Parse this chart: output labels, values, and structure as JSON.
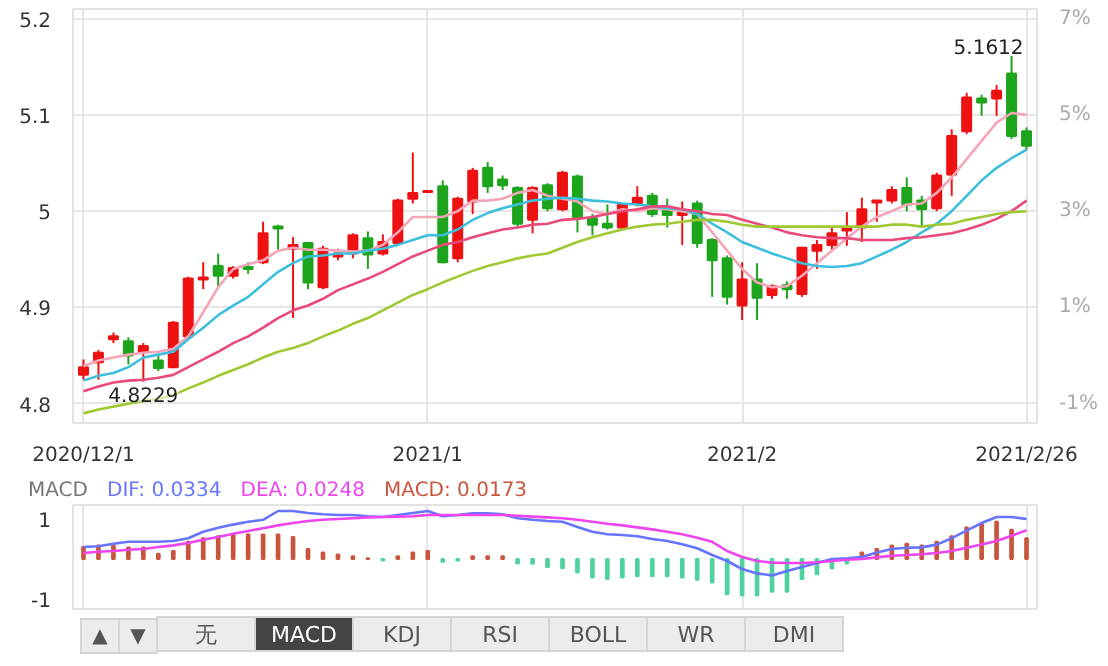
{
  "chart_data": [
    {
      "type": "candlestick",
      "categories": [
        "2020/12/1",
        null,
        null,
        null,
        null,
        null,
        null,
        null,
        null,
        null,
        null,
        null,
        null,
        null,
        null,
        null,
        null,
        null,
        null,
        null,
        null,
        null,
        null,
        "2021/1",
        null,
        null,
        null,
        null,
        null,
        null,
        null,
        null,
        null,
        null,
        null,
        null,
        null,
        null,
        null,
        null,
        null,
        null,
        null,
        null,
        "2021/2",
        null,
        null,
        null,
        null,
        null,
        null,
        null,
        null,
        null,
        null,
        null,
        null,
        null,
        null,
        null,
        null,
        null,
        null,
        "2021/2/26"
      ],
      "ohlc": [
        [
          4.83,
          4.846,
          4.825,
          4.838
        ],
        [
          4.843,
          4.856,
          4.825,
          4.853
        ],
        [
          4.867,
          4.874,
          4.863,
          4.87
        ],
        [
          4.865,
          4.869,
          4.841,
          4.85
        ],
        [
          4.854,
          4.863,
          4.8229,
          4.86
        ],
        [
          4.845,
          4.852,
          4.834,
          4.837
        ],
        [
          4.838,
          4.886,
          4.837,
          4.884
        ],
        [
          4.87,
          4.932,
          4.867,
          4.93
        ],
        [
          4.929,
          4.947,
          4.919,
          4.931
        ],
        [
          4.943,
          4.956,
          4.922,
          4.933
        ],
        [
          4.933,
          4.943,
          4.93,
          4.941
        ],
        [
          4.942,
          4.947,
          4.935,
          4.94
        ],
        [
          4.947,
          4.989,
          4.945,
          4.977
        ],
        [
          4.984,
          4.986,
          4.96,
          4.982
        ],
        [
          4.961,
          4.973,
          4.889,
          4.965
        ],
        [
          4.967,
          4.968,
          4.919,
          4.926
        ],
        [
          4.921,
          4.964,
          4.919,
          4.961
        ],
        [
          4.953,
          4.961,
          4.949,
          4.956
        ],
        [
          4.956,
          4.977,
          4.951,
          4.975
        ],
        [
          4.972,
          4.979,
          4.94,
          4.955
        ],
        [
          4.956,
          4.976,
          4.954,
          4.968
        ],
        [
          4.967,
          5.013,
          4.965,
          5.011
        ],
        [
          5.013,
          5.061,
          5.008,
          5.019
        ],
        [
          5.02,
          5.022,
          5.019,
          5.021
        ],
        [
          5.026,
          5.032,
          4.946,
          4.947
        ],
        [
          4.951,
          5.015,
          4.947,
          5.013
        ],
        [
          5.01,
          5.045,
          4.997,
          5.042
        ],
        [
          5.045,
          5.051,
          5.019,
          5.026
        ],
        [
          5.033,
          5.037,
          5.022,
          5.027
        ],
        [
          5.024,
          5.026,
          4.983,
          4.987
        ],
        [
          4.991,
          5.026,
          4.977,
          5.024
        ],
        [
          5.027,
          5.029,
          5.0,
          5.003
        ],
        [
          5.002,
          5.042,
          5.0,
          5.04
        ],
        [
          5.036,
          5.038,
          4.978,
          4.994
        ],
        [
          4.993,
          4.997,
          4.975,
          4.986
        ],
        [
          4.987,
          5.007,
          4.981,
          4.983
        ],
        [
          4.983,
          5.008,
          4.981,
          5.007
        ],
        [
          5.008,
          5.026,
          5.005,
          5.014
        ],
        [
          5.016,
          5.019,
          4.994,
          4.997
        ],
        [
          5.003,
          5.013,
          4.983,
          4.996
        ],
        [
          4.996,
          5.01,
          4.965,
          4.999
        ],
        [
          5.008,
          5.011,
          4.962,
          4.967
        ],
        [
          4.97,
          4.972,
          4.911,
          4.949
        ],
        [
          4.951,
          4.954,
          4.903,
          4.911
        ],
        [
          4.902,
          4.947,
          4.887,
          4.929
        ],
        [
          4.929,
          4.946,
          4.887,
          4.91
        ],
        [
          4.913,
          4.924,
          4.909,
          4.922
        ],
        [
          4.923,
          4.927,
          4.909,
          4.919
        ],
        [
          4.914,
          4.963,
          4.911,
          4.962
        ],
        [
          4.959,
          4.97,
          4.94,
          4.965
        ],
        [
          4.965,
          4.983,
          4.96,
          4.977
        ],
        [
          4.98,
          4.999,
          4.964,
          4.983
        ],
        [
          4.983,
          5.014,
          4.968,
          5.002
        ],
        [
          5.009,
          5.011,
          4.989,
          5.011
        ],
        [
          5.011,
          5.026,
          5.008,
          5.022
        ],
        [
          5.024,
          5.035,
          5.0,
          5.007
        ],
        [
          5.011,
          5.016,
          4.983,
          5.002
        ],
        [
          5.003,
          5.04,
          5.0,
          5.037
        ],
        [
          5.038,
          5.085,
          5.016,
          5.078
        ],
        [
          5.083,
          5.123,
          5.08,
          5.118
        ],
        [
          5.117,
          5.121,
          5.099,
          5.113
        ],
        [
          5.117,
          5.131,
          5.099,
          5.125
        ],
        [
          5.143,
          5.1612,
          5.075,
          5.078
        ],
        [
          5.083,
          5.087,
          5.064,
          5.068
        ]
      ],
      "colors": [
        "#ee1111",
        "#ee1111",
        "#ee1111",
        "#1ca51c",
        "#ee1111",
        "#1ca51c",
        "#ee1111",
        "#ee1111",
        "#ee1111",
        "#1ca51c",
        "#ee1111",
        "#1ca51c",
        "#ee1111",
        "#1ca51c",
        "#ee1111",
        "#1ca51c",
        "#ee1111",
        "#ee1111",
        "#ee1111",
        "#1ca51c",
        "#ee1111",
        "#ee1111",
        "#ee1111",
        "#ee1111",
        "#1ca51c",
        "#ee1111",
        "#ee1111",
        "#1ca51c",
        "#1ca51c",
        "#1ca51c",
        "#ee1111",
        "#1ca51c",
        "#ee1111",
        "#1ca51c",
        "#1ca51c",
        "#1ca51c",
        "#ee1111",
        "#ee1111",
        "#1ca51c",
        "#1ca51c",
        "#ee1111",
        "#1ca51c",
        "#1ca51c",
        "#1ca51c",
        "#ee1111",
        "#1ca51c",
        "#ee1111",
        "#1ca51c",
        "#ee1111",
        "#ee1111",
        "#ee1111",
        "#ee1111",
        "#ee1111",
        "#ee1111",
        "#ee1111",
        "#1ca51c",
        "#1ca51c",
        "#ee1111",
        "#ee1111",
        "#ee1111",
        "#1ca51c",
        "#ee1111",
        "#1ca51c",
        "#1ca51c"
      ],
      "series": [
        {
          "type": "line",
          "color": "#f4a6b8",
          "values": [
            4.839,
            4.845,
            4.848,
            4.851,
            4.853,
            4.854,
            4.857,
            4.87,
            4.895,
            4.921,
            4.94,
            4.945,
            4.949,
            4.959,
            4.962,
            4.96,
            4.96,
            4.959,
            4.958,
            4.959,
            4.965,
            4.978,
            4.994,
            4.994,
            4.994,
            5.0,
            5.011,
            5.011,
            5.013,
            5.019,
            5.022,
            5.016,
            5.013,
            5.01,
            5.0,
            4.997,
            5.002,
            5.0,
            5.003,
            5.002,
            5.0,
            4.997,
            4.978,
            4.959,
            4.94,
            4.926,
            4.921,
            4.922,
            4.933,
            4.946,
            4.959,
            4.972,
            4.984,
            4.994,
            5.0,
            5.007,
            5.008,
            5.019,
            5.035,
            5.054,
            5.073,
            5.092,
            5.102,
            5.1
          ]
        },
        {
          "type": "line",
          "color": "#3dbfdc",
          "values": [
            4.824,
            4.829,
            4.832,
            4.838,
            4.848,
            4.851,
            4.854,
            4.867,
            4.879,
            4.892,
            4.902,
            4.911,
            4.924,
            4.937,
            4.946,
            4.953,
            4.954,
            4.956,
            4.956,
            4.959,
            4.961,
            4.965,
            4.97,
            4.975,
            4.975,
            4.981,
            4.991,
            4.998,
            5.003,
            5.007,
            5.011,
            5.013,
            5.014,
            5.013,
            5.011,
            5.01,
            5.008,
            5.007,
            5.005,
            5.003,
            5.002,
            4.997,
            4.987,
            4.978,
            4.968,
            4.962,
            4.956,
            4.951,
            4.946,
            4.943,
            4.942,
            4.943,
            4.946,
            4.953,
            4.96,
            4.968,
            4.978,
            4.987,
            5.0,
            5.016,
            5.032,
            5.045,
            5.055,
            5.064
          ]
        },
        {
          "type": "line",
          "color": "#ea4a7a",
          "values": [
            4.813,
            4.818,
            4.822,
            4.824,
            4.825,
            4.827,
            4.83,
            4.838,
            4.846,
            4.854,
            4.863,
            4.87,
            4.879,
            4.889,
            4.897,
            4.902,
            4.909,
            4.918,
            4.924,
            4.93,
            4.937,
            4.945,
            4.953,
            4.959,
            4.965,
            4.968,
            4.973,
            4.977,
            4.981,
            4.983,
            4.986,
            4.987,
            4.991,
            4.992,
            4.994,
            4.997,
            5.0,
            5.002,
            5.005,
            5.005,
            5.002,
            5.0,
            4.997,
            4.996,
            4.991,
            4.987,
            4.983,
            4.978,
            4.975,
            4.973,
            4.972,
            4.972,
            4.97,
            4.97,
            4.97,
            4.972,
            4.973,
            4.975,
            4.977,
            4.981,
            4.986,
            4.992,
            5.0,
            5.011
          ]
        },
        {
          "type": "line",
          "color": "#a0c832",
          "values": [
            4.79,
            4.794,
            4.797,
            4.8,
            4.803,
            4.805,
            4.809,
            4.816,
            4.822,
            4.829,
            4.835,
            4.841,
            4.848,
            4.854,
            4.858,
            4.863,
            4.87,
            4.876,
            4.883,
            4.889,
            4.897,
            4.905,
            4.913,
            4.919,
            4.926,
            4.932,
            4.938,
            4.943,
            4.947,
            4.951,
            4.954,
            4.956,
            4.962,
            4.968,
            4.973,
            4.977,
            4.981,
            4.984,
            4.986,
            4.987,
            4.989,
            4.991,
            4.991,
            4.989,
            4.986,
            4.984,
            4.984,
            4.984,
            4.984,
            4.984,
            4.984,
            4.984,
            4.984,
            4.984,
            4.986,
            4.986,
            4.984,
            4.986,
            4.987,
            4.991,
            4.994,
            4.997,
            4.999,
            5.0
          ]
        }
      ],
      "annotations": [
        "4.8229",
        "5.1612"
      ],
      "ylim": [
        4.78,
        5.21
      ],
      "yticks": [
        4.8,
        4.9,
        5,
        5.1,
        5.2
      ],
      "y2lim": [
        -1.4,
        7.2
      ],
      "y2ticks": [
        {
          "value": -1,
          "label": "-1%"
        },
        {
          "value": 1,
          "label": "1%"
        },
        {
          "value": 3,
          "label": "3%"
        },
        {
          "value": 5,
          "label": "5%"
        },
        {
          "value": 7,
          "label": "7%"
        }
      ],
      "grid": true
    },
    {
      "type": "bar",
      "title": "MACD",
      "categories": [
        "2020/12/1",
        null,
        null,
        null,
        null,
        null,
        null,
        null,
        null,
        null,
        null,
        null,
        null,
        null,
        null,
        null,
        null,
        null,
        null,
        null,
        null,
        null,
        null,
        "2021/1",
        null,
        null,
        null,
        null,
        null,
        null,
        null,
        null,
        null,
        null,
        null,
        null,
        null,
        null,
        null,
        null,
        null,
        null,
        null,
        null,
        "2021/2",
        null,
        null,
        null,
        null,
        null,
        null,
        null,
        null,
        null,
        null,
        null,
        null,
        null,
        null,
        null,
        null,
        null,
        null,
        "2021/2/26"
      ],
      "series": [
        {
          "type": "line",
          "name": "DIF: 0.0334",
          "color": "#6674ff",
          "values": [
            0.3,
            0.32,
            0.38,
            0.43,
            0.43,
            0.43,
            0.45,
            0.52,
            0.68,
            0.78,
            0.86,
            0.93,
            0.98,
            1.2,
            1.2,
            1.15,
            1.12,
            1.1,
            1.1,
            1.07,
            1.05,
            1.1,
            1.15,
            1.2,
            1.07,
            1.1,
            1.14,
            1.14,
            1.12,
            1.02,
            0.98,
            0.95,
            0.93,
            0.8,
            0.68,
            0.62,
            0.6,
            0.57,
            0.5,
            0.45,
            0.37,
            0.27,
            0.1,
            -0.05,
            -0.25,
            -0.36,
            -0.41,
            -0.3,
            -0.2,
            -0.1,
            0.0,
            0.02,
            0.05,
            0.16,
            0.25,
            0.28,
            0.29,
            0.36,
            0.52,
            0.71,
            0.9,
            1.05,
            1.05,
            1.0
          ]
        },
        {
          "type": "line",
          "name": "DEA: 0.0248",
          "color": "#ee44ee",
          "values": [
            0.15,
            0.18,
            0.2,
            0.23,
            0.25,
            0.3,
            0.34,
            0.4,
            0.48,
            0.55,
            0.63,
            0.7,
            0.77,
            0.84,
            0.9,
            0.95,
            0.98,
            1.0,
            1.02,
            1.04,
            1.05,
            1.06,
            1.07,
            1.1,
            1.1,
            1.1,
            1.1,
            1.1,
            1.1,
            1.08,
            1.06,
            1.04,
            1.02,
            0.98,
            0.93,
            0.88,
            0.84,
            0.79,
            0.74,
            0.68,
            0.62,
            0.53,
            0.43,
            0.2,
            0.05,
            -0.05,
            -0.09,
            -0.1,
            -0.1,
            -0.08,
            -0.05,
            -0.02,
            0.0,
            0.04,
            0.08,
            0.1,
            0.12,
            0.15,
            0.2,
            0.28,
            0.36,
            0.45,
            0.58,
            0.72
          ]
        },
        {
          "type": "bar",
          "name": "MACD: 0.0173",
          "color": "#c8553d",
          "values": [
            0.3,
            0.34,
            0.34,
            0.29,
            0.29,
            0.13,
            0.2,
            0.43,
            0.52,
            0.57,
            0.61,
            0.61,
            0.61,
            0.61,
            0.55,
            0.25,
            0.16,
            0.11,
            0.07,
            0.02,
            -0.04,
            0.07,
            0.16,
            0.2,
            -0.07,
            -0.04,
            0.07,
            0.07,
            0.07,
            -0.11,
            -0.12,
            -0.2,
            -0.23,
            -0.34,
            -0.46,
            -0.5,
            -0.46,
            -0.43,
            -0.43,
            -0.43,
            -0.46,
            -0.52,
            -0.59,
            -0.88,
            -0.91,
            -0.91,
            -0.82,
            -0.82,
            -0.5,
            -0.38,
            -0.23,
            -0.11,
            0.16,
            0.25,
            0.34,
            0.38,
            0.34,
            0.43,
            0.57,
            0.79,
            0.88,
            0.93,
            0.73,
            0.52
          ],
          "colors": [
            "#c8553d",
            "#c8553d",
            "#c8553d",
            "#c8553d",
            "#c8553d",
            "#c8553d",
            "#c8553d",
            "#c8553d",
            "#c8553d",
            "#c8553d",
            "#c8553d",
            "#c8553d",
            "#c8553d",
            "#c8553d",
            "#c8553d",
            "#c8553d",
            "#c8553d",
            "#c8553d",
            "#c8553d",
            "#c8553d",
            "#4fd1a0",
            "#c8553d",
            "#c8553d",
            "#c8553d",
            "#4fd1a0",
            "#4fd1a0",
            "#c8553d",
            "#c8553d",
            "#c8553d",
            "#4fd1a0",
            "#4fd1a0",
            "#4fd1a0",
            "#4fd1a0",
            "#4fd1a0",
            "#4fd1a0",
            "#4fd1a0",
            "#4fd1a0",
            "#4fd1a0",
            "#4fd1a0",
            "#4fd1a0",
            "#4fd1a0",
            "#4fd1a0",
            "#4fd1a0",
            "#4fd1a0",
            "#4fd1a0",
            "#4fd1a0",
            "#4fd1a0",
            "#4fd1a0",
            "#4fd1a0",
            "#4fd1a0",
            "#4fd1a0",
            "#4fd1a0",
            "#c8553d",
            "#c8553d",
            "#c8553d",
            "#c8553d",
            "#c8553d",
            "#c8553d",
            "#c8553d",
            "#c8553d",
            "#c8553d",
            "#c8553d",
            "#c8553d",
            "#c8553d"
          ]
        }
      ],
      "annotations": [
        "▲",
        "▼",
        "无",
        "MACD",
        "KDJ",
        "RSI",
        "BOLL",
        "WR",
        "DMI"
      ],
      "ylim": [
        -1.25,
        1.35
      ],
      "yticks": [
        -1,
        1
      ],
      "tick_labels": "y",
      "grid": "x",
      "legend": "top left"
    }
  ]
}
